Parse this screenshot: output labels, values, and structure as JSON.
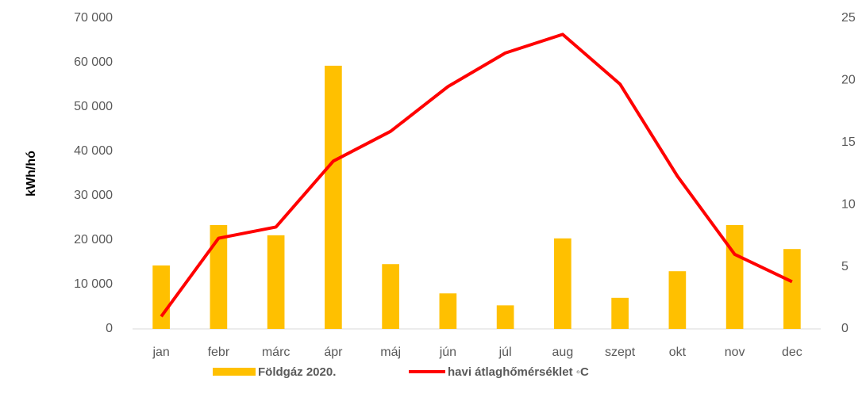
{
  "chart_data": {
    "type": "bar-line",
    "y_label": "kWh/hó",
    "categories": [
      "jan",
      "febr",
      "márc",
      "ápr",
      "máj",
      "jún",
      "júl",
      "aug",
      "szept",
      "okt",
      "nov",
      "dec"
    ],
    "series": [
      {
        "name": "Földgáz 2020.",
        "type": "bar",
        "color": "#ffc000",
        "values": [
          14300,
          23400,
          21100,
          59300,
          14600,
          8000,
          5300,
          20400,
          7000,
          13000,
          23400,
          18000
        ]
      },
      {
        "name": "havi átlaghőmérséklet ◦C",
        "type": "line",
        "axis": "y2",
        "color": "#ff0000",
        "values": [
          1.0,
          7.3,
          8.2,
          13.5,
          15.9,
          19.5,
          22.2,
          23.7,
          19.7,
          12.3,
          6.0,
          3.8
        ]
      }
    ],
    "ylim": [
      0,
      70000
    ],
    "yticks": [
      {
        "value": 0,
        "label": "0"
      },
      {
        "value": 10000,
        "label": "10 000"
      },
      {
        "value": 20000,
        "label": "20 000"
      },
      {
        "value": 30000,
        "label": "30 000"
      },
      {
        "value": 40000,
        "label": "40 000"
      },
      {
        "value": 50000,
        "label": "50 000"
      },
      {
        "value": 60000,
        "label": "60 000"
      },
      {
        "value": 70000,
        "label": "70 000"
      }
    ],
    "y2lim": [
      0,
      25
    ],
    "y2ticks": [
      0,
      5,
      10,
      15,
      20,
      25
    ],
    "grid": false,
    "legend": "bottom"
  }
}
